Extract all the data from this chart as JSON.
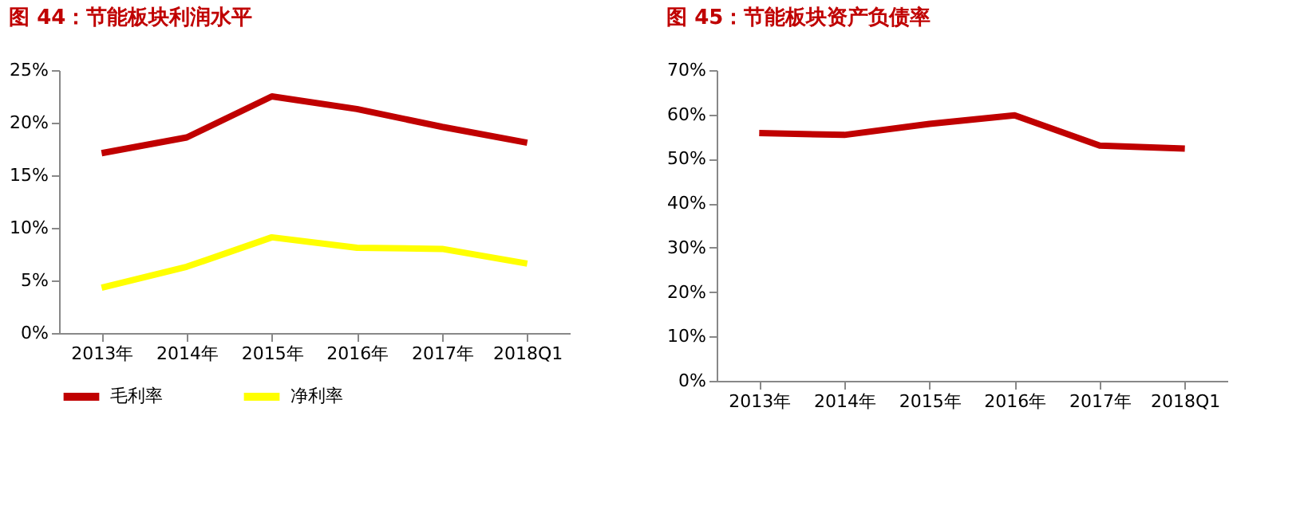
{
  "chart_data": [
    {
      "type": "line",
      "title": "图 44：节能板块利润水平",
      "categories": [
        "2013年",
        "2014年",
        "2015年",
        "2016年",
        "2017年",
        "2018Q1"
      ],
      "series": [
        {
          "name": "毛利率",
          "color": "#c00000",
          "values": [
            17.1,
            18.6,
            22.5,
            21.3,
            19.6,
            18.1
          ]
        },
        {
          "name": "净利率",
          "color": "#ffff00",
          "values": [
            4.3,
            6.3,
            9.1,
            8.1,
            8.0,
            6.6
          ]
        }
      ],
      "ylim": [
        0,
        25
      ],
      "yticks": [
        {
          "value": 0,
          "label": "0%"
        },
        {
          "value": 5,
          "label": "5%"
        },
        {
          "value": 10,
          "label": "10%"
        },
        {
          "value": 15,
          "label": "15%"
        },
        {
          "value": 20,
          "label": "20%"
        },
        {
          "value": 25,
          "label": "25%"
        }
      ],
      "grid": false,
      "legend": "bottom",
      "marker": "none",
      "line_style": "solid"
    },
    {
      "type": "line",
      "title": "图 45：节能板块资产负债率",
      "categories": [
        "2013年",
        "2014年",
        "2015年",
        "2016年",
        "2017年",
        "2018Q1"
      ],
      "series": [
        {
          "color": "#c00000",
          "values": [
            55.8,
            55.4,
            57.9,
            59.8,
            53.0,
            52.3
          ]
        }
      ],
      "ylim": [
        0,
        70
      ],
      "yticks": [
        {
          "value": 0,
          "label": "0%"
        },
        {
          "value": 10,
          "label": "10%"
        },
        {
          "value": 20,
          "label": "20%"
        },
        {
          "value": 30,
          "label": "30%"
        },
        {
          "value": 40,
          "label": "40%"
        },
        {
          "value": 50,
          "label": "50%"
        },
        {
          "value": 60,
          "label": "60%"
        },
        {
          "value": 70,
          "label": "70%"
        }
      ],
      "grid": false,
      "legend": false,
      "marker": "none",
      "line_style": "solid"
    }
  ]
}
